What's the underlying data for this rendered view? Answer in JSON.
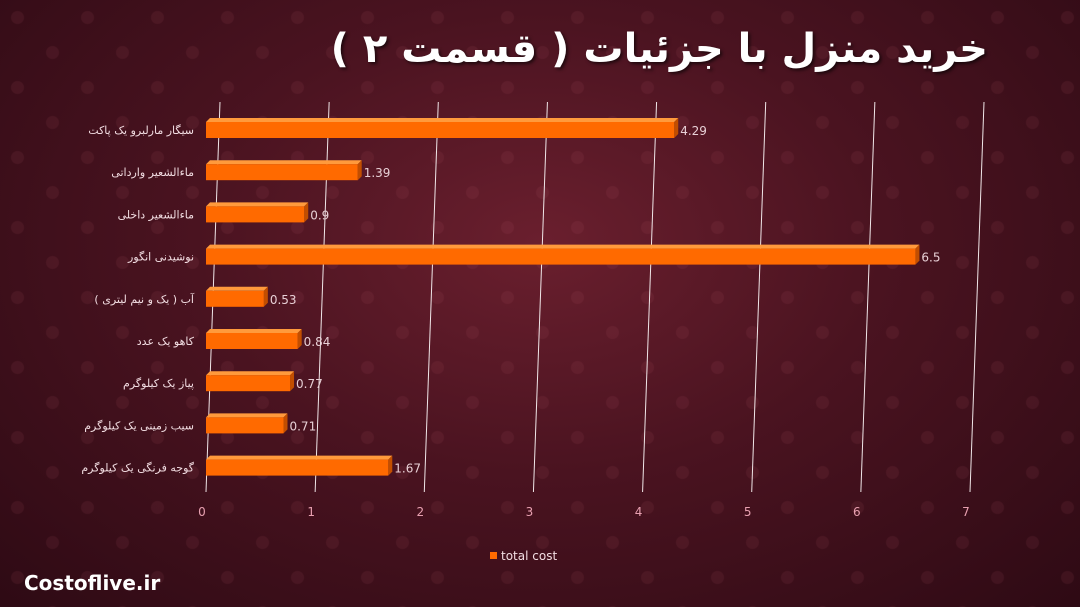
{
  "title": "خرید منزل با جزئیات ( قسمت ۲ )",
  "brand": "Costoflive.ir",
  "chart_data": {
    "type": "bar",
    "orientation": "horizontal",
    "categories": [
      "سیگار مارلبرو یک پاکت",
      "ماءالشعیر وارداتی",
      "ماءالشعیر داخلی",
      "نوشیدنی انگور",
      "آب ( یک و نیم لیتری )",
      "کاهو  یک عدد",
      "پیاز یک کیلوگرم",
      "سیب زمینی یک کیلوگرم",
      "گوجه فرنگی یک کیلوگرم"
    ],
    "series": [
      {
        "name": "total cost",
        "values": [
          4.29,
          1.39,
          0.9,
          6.5,
          0.53,
          0.84,
          0.77,
          0.71,
          1.67
        ],
        "value_labels": [
          "4.29",
          "1.39",
          "0.9",
          "6.5",
          "0.53",
          "0.84",
          "0.77",
          "0.71",
          "1.67"
        ]
      }
    ],
    "xlim": [
      0,
      7
    ],
    "xticks": [
      "0",
      "1",
      "2",
      "3",
      "4",
      "5",
      "6",
      "7"
    ],
    "grid": true,
    "legend": "bottom-center",
    "colors": {
      "bar": "#ff6a00",
      "bar_top": "#ff9a3c",
      "bar_side": "#c24e00",
      "grid": "#f0e6e8"
    }
  }
}
